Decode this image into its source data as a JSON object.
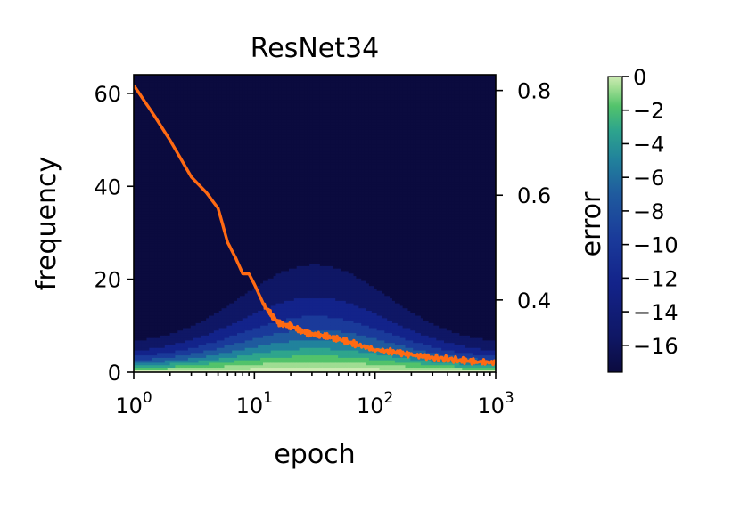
{
  "chart_data": {
    "type": "heatmap",
    "title": "ResNet34",
    "xlabel": "epoch",
    "ylabel": "frequency",
    "y2label": "",
    "colorbar_label": "error",
    "x_scale": "log",
    "xlim": [
      1,
      1000
    ],
    "ylim": [
      0,
      64
    ],
    "y2lim": [
      0.262,
      0.83
    ],
    "clim": [
      -17.6,
      0
    ],
    "x_ticks": [
      1,
      10,
      100,
      1000
    ],
    "x_tick_labels": [
      {
        "base": "10",
        "exp": "0"
      },
      {
        "base": "10",
        "exp": "1"
      },
      {
        "base": "10",
        "exp": "2"
      },
      {
        "base": "10",
        "exp": "3"
      }
    ],
    "y_ticks": [
      0,
      20,
      40,
      60
    ],
    "y_tick_labels": [
      "0",
      "20",
      "40",
      "60"
    ],
    "y2_ticks": [
      0.4,
      0.6,
      0.8
    ],
    "y2_tick_labels": [
      "0.4",
      "0.6",
      "0.8"
    ],
    "colorbar_ticks": [
      0,
      -2,
      -4,
      -6,
      -8,
      -10,
      -12,
      -14,
      -16
    ],
    "colorbar_tick_labels": [
      "0",
      "−2",
      "−4",
      "−6",
      "−8",
      "−10",
      "−12",
      "−14",
      "−16"
    ],
    "colormap": [
      "#0b0b3f",
      "#0f1765",
      "#13238a",
      "#1a3a9a",
      "#1f5a9e",
      "#21829c",
      "#2ea58c",
      "#52c36b",
      "#9fdd92",
      "#cdebb3"
    ],
    "error_line": {
      "name": "",
      "color": "#ff6a13",
      "x": [
        1,
        1.5,
        2,
        3,
        4,
        5,
        6,
        7,
        8,
        9,
        10,
        12,
        14,
        16,
        20,
        25,
        30,
        40,
        50,
        70,
        100,
        150,
        200,
        300,
        500,
        700,
        1000
      ],
      "y": [
        0.81,
        0.75,
        0.705,
        0.635,
        0.605,
        0.575,
        0.51,
        0.48,
        0.45,
        0.45,
        0.43,
        0.39,
        0.37,
        0.355,
        0.35,
        0.34,
        0.335,
        0.33,
        0.325,
        0.315,
        0.305,
        0.3,
        0.295,
        0.29,
        0.285,
        0.282,
        0.28
      ]
    }
  }
}
